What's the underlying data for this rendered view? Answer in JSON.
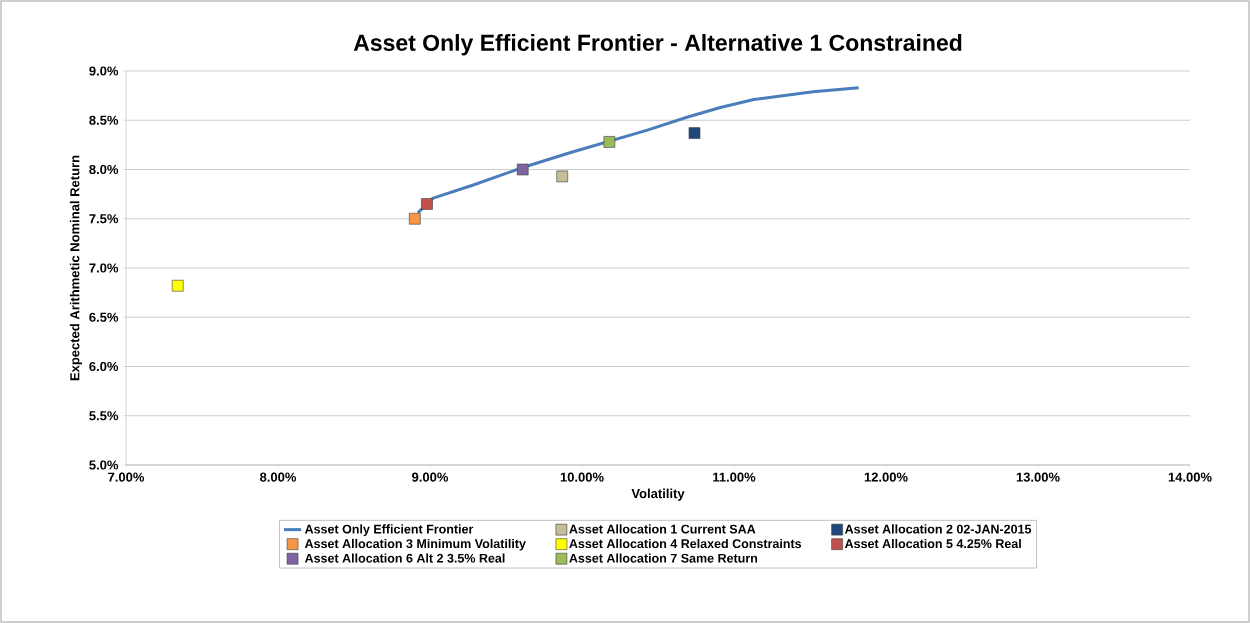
{
  "chart_data": {
    "type": "scatter",
    "title": "Asset Only Efficient Frontier - Alternative 1 Constrained",
    "xlabel": "Volatility",
    "ylabel": "Expected Arithmetic Nominal Return",
    "xlim": [
      7,
      14
    ],
    "ylim": [
      5,
      9
    ],
    "xticks": [
      {
        "value": 7,
        "label": "7.00%"
      },
      {
        "value": 8,
        "label": "8.00%"
      },
      {
        "value": 9,
        "label": "9.00%"
      },
      {
        "value": 10,
        "label": "10.00%"
      },
      {
        "value": 11,
        "label": "11.00%"
      },
      {
        "value": 12,
        "label": "12.00%"
      },
      {
        "value": 13,
        "label": "13.00%"
      },
      {
        "value": 14,
        "label": "14.00%"
      }
    ],
    "yticks": [
      {
        "value": 5,
        "label": "5.0%"
      },
      {
        "value": 5.5,
        "label": "5.5%"
      },
      {
        "value": 6,
        "label": "6.0%"
      },
      {
        "value": 6.5,
        "label": "6.5%"
      },
      {
        "value": 7,
        "label": "7.0%"
      },
      {
        "value": 7.5,
        "label": "7.5%"
      },
      {
        "value": 8,
        "label": "8.0%"
      },
      {
        "value": 8.5,
        "label": "8.5%"
      },
      {
        "value": 9,
        "label": "9.0%"
      }
    ],
    "grid": "y",
    "legend": "bottom",
    "marker": "square",
    "series": [
      {
        "name": "Asset Only Efficient Frontier",
        "type": "line",
        "marker": "none",
        "color": "#4a7ebb",
        "x": [
          8.92,
          9.02,
          9.28,
          9.61,
          9.92,
          10.18,
          10.43,
          10.69,
          10.91,
          11.13,
          11.52,
          11.82
        ],
        "values": [
          7.56,
          7.71,
          7.84,
          8.02,
          8.17,
          null,
          8.4,
          8.53,
          8.63,
          8.71,
          8.79,
          8.83
        ]
      },
      {
        "name": "Asset Allocation 1 Current SAA",
        "color": "#c4bd97",
        "x": [
          9.87
        ],
        "values": [
          7.93
        ]
      },
      {
        "name": "Asset Allocation 2 02-JAN-2015",
        "color": "#1f497d",
        "x": [
          10.74
        ],
        "values": [
          8.37
        ]
      },
      {
        "name": "Asset Allocation 3 Minimum Volatility",
        "color": "#f79646",
        "x": [
          8.9
        ],
        "values": [
          7.5
        ]
      },
      {
        "name": "Asset Allocation 4 Relaxed Constraints",
        "color": "#ffff00",
        "x": [
          7.34
        ],
        "values": [
          6.82
        ]
      },
      {
        "name": "Asset Allocation 5 4.25% Real",
        "color": "#c0504d",
        "x": [
          8.98
        ],
        "values": [
          7.65
        ]
      },
      {
        "name": "Asset Allocation 6 Alt 2 3.5% Real",
        "color": "#8064a2",
        "x": [
          9.61
        ],
        "values": [
          8.0
        ]
      },
      {
        "name": "Asset Allocation 7 Same Return",
        "color": "#9bbb59",
        "x": [
          10.18
        ],
        "values": [
          8.28
        ]
      }
    ]
  }
}
